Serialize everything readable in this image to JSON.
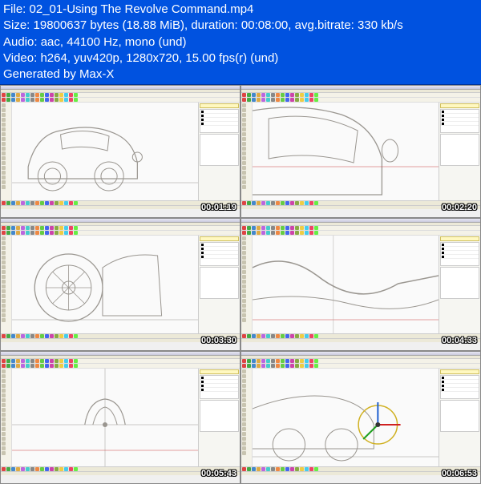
{
  "header": {
    "file_label": "File:",
    "file_name": "02_01-Using The Revolve Command.mp4",
    "size_label": "Size:",
    "size_bytes": "19800637 bytes",
    "size_human": "(18.88 MiB)",
    "duration_label": "duration:",
    "duration": "00:08:00",
    "bitrate_label": "avg.bitrate:",
    "bitrate": "330 kb/s",
    "audio_label": "Audio:",
    "audio": "aac, 44100 Hz, mono (und)",
    "video_label": "Video:",
    "video": "h264, yuv420p, 1280x720, 15.00 fps(r) (und)",
    "generated": "Generated by Max-X",
    "bg_color": "#0052e0",
    "text_color": "#ffffff"
  },
  "toolbar_colors": [
    "#d44",
    "#4a4",
    "#48c",
    "#da4",
    "#b6d",
    "#4cc",
    "#888",
    "#e84",
    "#6c4",
    "#46e",
    "#c4a",
    "#8a4",
    "#ec4",
    "#4ce",
    "#e46",
    "#6e4"
  ],
  "thumbnails": [
    {
      "timestamp": "00:01:19",
      "viewport": "car_qtr"
    },
    {
      "timestamp": "00:02:20",
      "viewport": "car_close"
    },
    {
      "timestamp": "00:03:30",
      "viewport": "wheel_side"
    },
    {
      "timestamp": "00:04:33",
      "viewport": "curve"
    },
    {
      "timestamp": "00:05:43",
      "viewport": "hub_front"
    },
    {
      "timestamp": "00:06:53",
      "viewport": "gizmo"
    }
  ],
  "sketch_color": "#9a9690",
  "sketch_stroke": 1,
  "gizmo_colors": {
    "x": "#d02020",
    "y": "#20a020",
    "z": "#2060d0",
    "ring": "#d0b020"
  }
}
